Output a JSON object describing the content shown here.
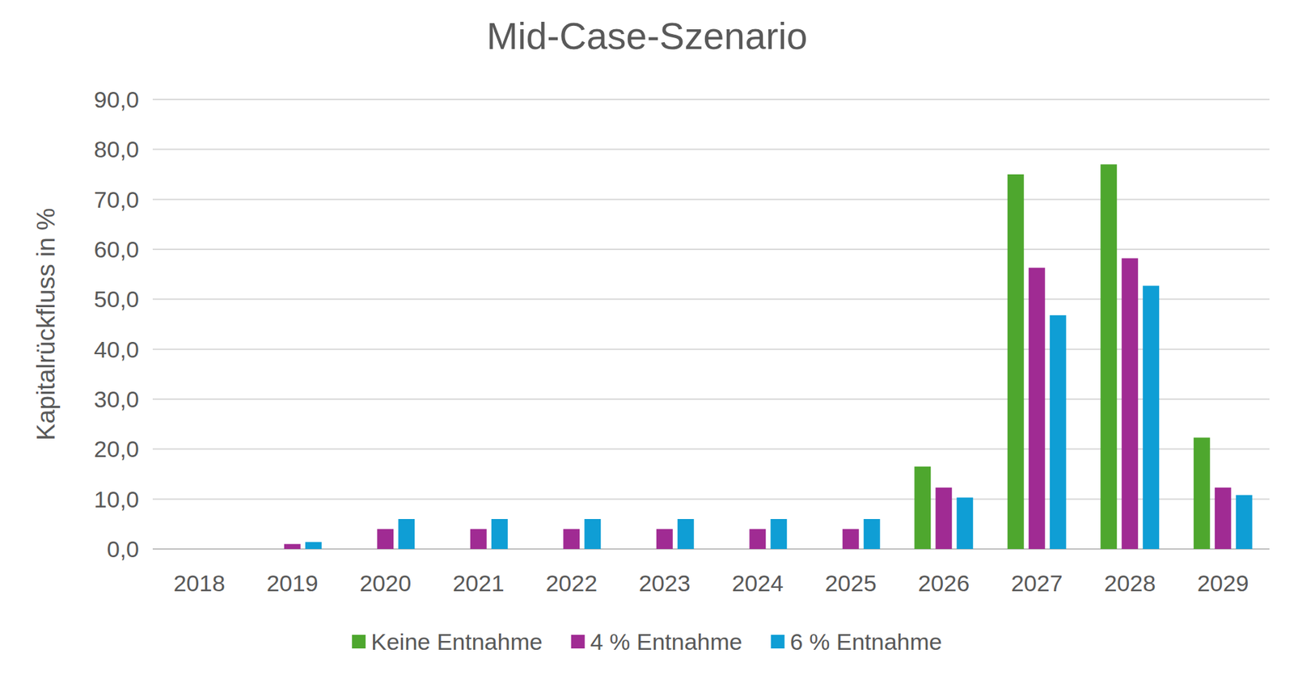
{
  "chart_data": {
    "type": "bar",
    "title": "Mid-Case-Szenario",
    "y_label": "Kapitalrückfluss in %",
    "categories": [
      "2018",
      "2019",
      "2020",
      "2021",
      "2022",
      "2023",
      "2024",
      "2025",
      "2026",
      "2027",
      "2028",
      "2029"
    ],
    "series": [
      {
        "name": "Keine Entnahme",
        "color": "#4ea72e",
        "values": [
          0,
          0,
          0,
          0,
          0,
          0,
          0,
          0,
          16.5,
          75.0,
          77.0,
          22.3
        ]
      },
      {
        "name": "4 % Entnahme",
        "color": "#a02b93",
        "values": [
          0,
          1.0,
          4.0,
          4.0,
          4.0,
          4.0,
          4.0,
          4.0,
          12.3,
          56.3,
          58.2,
          12.3
        ]
      },
      {
        "name": "6 % Entnahme",
        "color": "#0f9ed5",
        "values": [
          0,
          1.4,
          6.0,
          6.0,
          6.0,
          6.0,
          6.0,
          6.0,
          10.3,
          46.8,
          52.7,
          10.8
        ]
      }
    ],
    "ylim": [
      0,
      90
    ],
    "yticks": [
      {
        "value": 0,
        "label": "0,0"
      },
      {
        "value": 10,
        "label": "10,0"
      },
      {
        "value": 20,
        "label": "20,0"
      },
      {
        "value": 30,
        "label": "30,0"
      },
      {
        "value": 40,
        "label": "40,0"
      },
      {
        "value": 50,
        "label": "50,0"
      },
      {
        "value": 60,
        "label": "60,0"
      },
      {
        "value": 70,
        "label": "70,0"
      },
      {
        "value": 80,
        "label": "80,0"
      },
      {
        "value": 90,
        "label": "90,0"
      }
    ],
    "grid": true,
    "legend": "bottom"
  }
}
